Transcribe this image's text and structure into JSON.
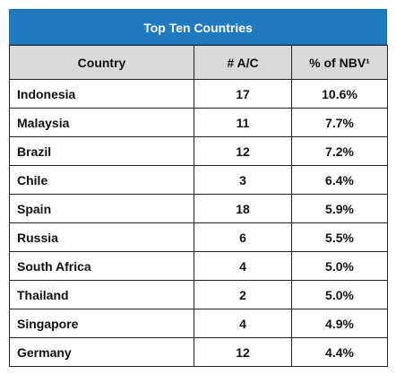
{
  "table": {
    "title": "Top Ten Countries",
    "headers": [
      "Country",
      "# A/C",
      "% of NBV¹"
    ],
    "rows": [
      [
        "Indonesia",
        "17",
        "10.6%"
      ],
      [
        "Malaysia",
        "11",
        "7.7%"
      ],
      [
        "Brazil",
        "12",
        "7.2%"
      ],
      [
        "Chile",
        "3",
        "6.4%"
      ],
      [
        "Spain",
        "18",
        "5.9%"
      ],
      [
        "Russia",
        "6",
        "5.5%"
      ],
      [
        "South Africa",
        "4",
        "5.0%"
      ],
      [
        "Thailand",
        "2",
        "5.0%"
      ],
      [
        "Singapore",
        "4",
        "4.9%"
      ],
      [
        "Germany",
        "12",
        "4.4%"
      ]
    ]
  }
}
